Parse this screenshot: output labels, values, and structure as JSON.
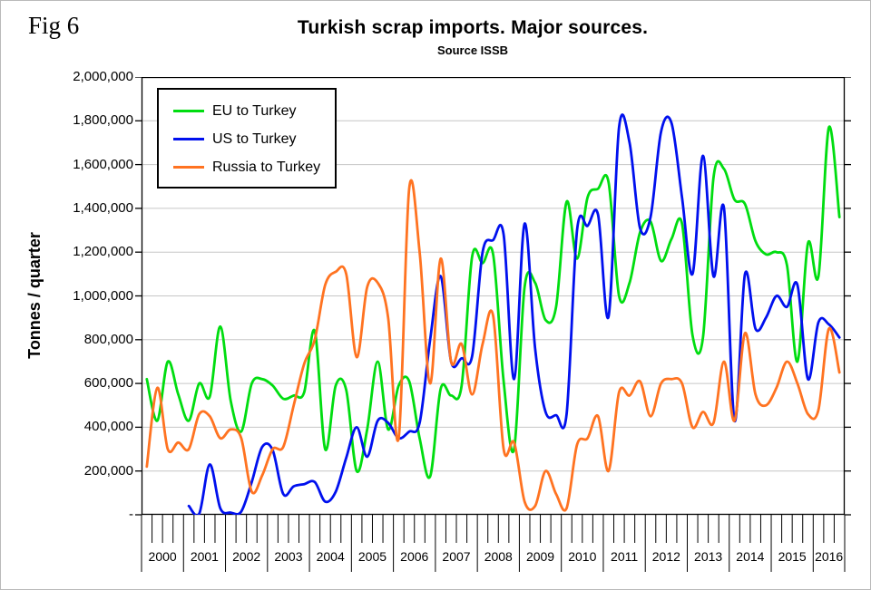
{
  "fig_label": "Fig 6",
  "title": "Turkish scrap imports. Major sources.",
  "subtitle": "Source ISSB",
  "colors": {
    "gridline": "#c6c6c6",
    "axis": "#000000",
    "eu": "#00dd10",
    "us": "#0010ee",
    "russia": "#ff7321"
  },
  "y_axis": {
    "label": "Tonnes / quarter",
    "tick_labels": [
      "2,000,000",
      "1,800,000",
      "1,600,000",
      "1,400,000",
      "1,200,000",
      "1,000,000",
      "800,000",
      "600,000",
      "400,000",
      "200,000",
      "-"
    ],
    "min": 0,
    "max": 2000000,
    "step": 200000
  },
  "x_axis": {
    "years": [
      "2000",
      "2001",
      "2002",
      "2003",
      "2004",
      "2005",
      "2006",
      "2007",
      "2008",
      "2009",
      "2010",
      "2011",
      "2012",
      "2013",
      "2014",
      "2015",
      "2016"
    ],
    "quarters_per_year": 4
  },
  "legend": [
    {
      "label": "EU to Turkey",
      "color_key": "eu"
    },
    {
      "label": "US to Turkey",
      "color_key": "us"
    },
    {
      "label": "Russia to Turkey",
      "color_key": "russia"
    }
  ],
  "chart_data": {
    "type": "line",
    "title": "Turkish scrap imports. Major sources.",
    "subtitle": "Source ISSB",
    "ylabel": "Tonnes / quarter",
    "ylim": [
      0,
      2000000
    ],
    "y_step": 200000,
    "grid": true,
    "legend_position": "top-left-inside",
    "x_unit": "quarter",
    "x_start": "2000-Q1",
    "x_end": "2016-Q3",
    "series": [
      {
        "name": "EU to Turkey",
        "color_key": "eu",
        "values": [
          620000,
          430000,
          700000,
          550000,
          430000,
          600000,
          540000,
          860000,
          520000,
          380000,
          600000,
          620000,
          590000,
          530000,
          545000,
          560000,
          840000,
          300000,
          590000,
          570000,
          200000,
          390000,
          700000,
          390000,
          590000,
          610000,
          350000,
          175000,
          575000,
          545000,
          590000,
          1180000,
          1150000,
          1190000,
          610000,
          300000,
          1040000,
          1060000,
          890000,
          950000,
          1430000,
          1170000,
          1450000,
          1490000,
          1520000,
          1000000,
          1060000,
          1290000,
          1340000,
          1160000,
          1260000,
          1330000,
          820000,
          810000,
          1540000,
          1580000,
          1440000,
          1420000,
          1250000,
          1190000,
          1200000,
          1140000,
          700000,
          1240000,
          1090000,
          1770000,
          1360000
        ]
      },
      {
        "name": "US to Turkey",
        "color_key": "us",
        "values": [
          null,
          null,
          null,
          null,
          40000,
          5000,
          230000,
          30000,
          10000,
          15000,
          150000,
          310000,
          295000,
          95000,
          130000,
          140000,
          150000,
          60000,
          105000,
          260000,
          400000,
          265000,
          430000,
          420000,
          350000,
          380000,
          420000,
          800000,
          1090000,
          700000,
          715000,
          725000,
          1200000,
          1255000,
          1280000,
          620000,
          1330000,
          760000,
          470000,
          455000,
          460000,
          1300000,
          1320000,
          1370000,
          905000,
          1770000,
          1700000,
          1310000,
          1360000,
          1750000,
          1790000,
          1450000,
          1100000,
          1640000,
          1090000,
          1400000,
          430000,
          1100000,
          850000,
          900000,
          1000000,
          950000,
          1050000,
          620000,
          880000,
          870000,
          810000
        ]
      },
      {
        "name": "Russia to Turkey",
        "color_key": "russia",
        "values": [
          220000,
          580000,
          300000,
          330000,
          300000,
          460000,
          450000,
          350000,
          390000,
          350000,
          105000,
          180000,
          300000,
          310000,
          500000,
          690000,
          800000,
          1050000,
          1110000,
          1100000,
          720000,
          1040000,
          1060000,
          900000,
          350000,
          1490000,
          1200000,
          600000,
          1170000,
          700000,
          780000,
          550000,
          780000,
          910000,
          300000,
          330000,
          60000,
          40000,
          200000,
          95000,
          30000,
          320000,
          350000,
          450000,
          200000,
          560000,
          545000,
          610000,
          450000,
          600000,
          620000,
          600000,
          400000,
          470000,
          420000,
          700000,
          430000,
          830000,
          550000,
          500000,
          580000,
          700000,
          600000,
          460000,
          480000,
          850000,
          650000
        ]
      }
    ]
  }
}
